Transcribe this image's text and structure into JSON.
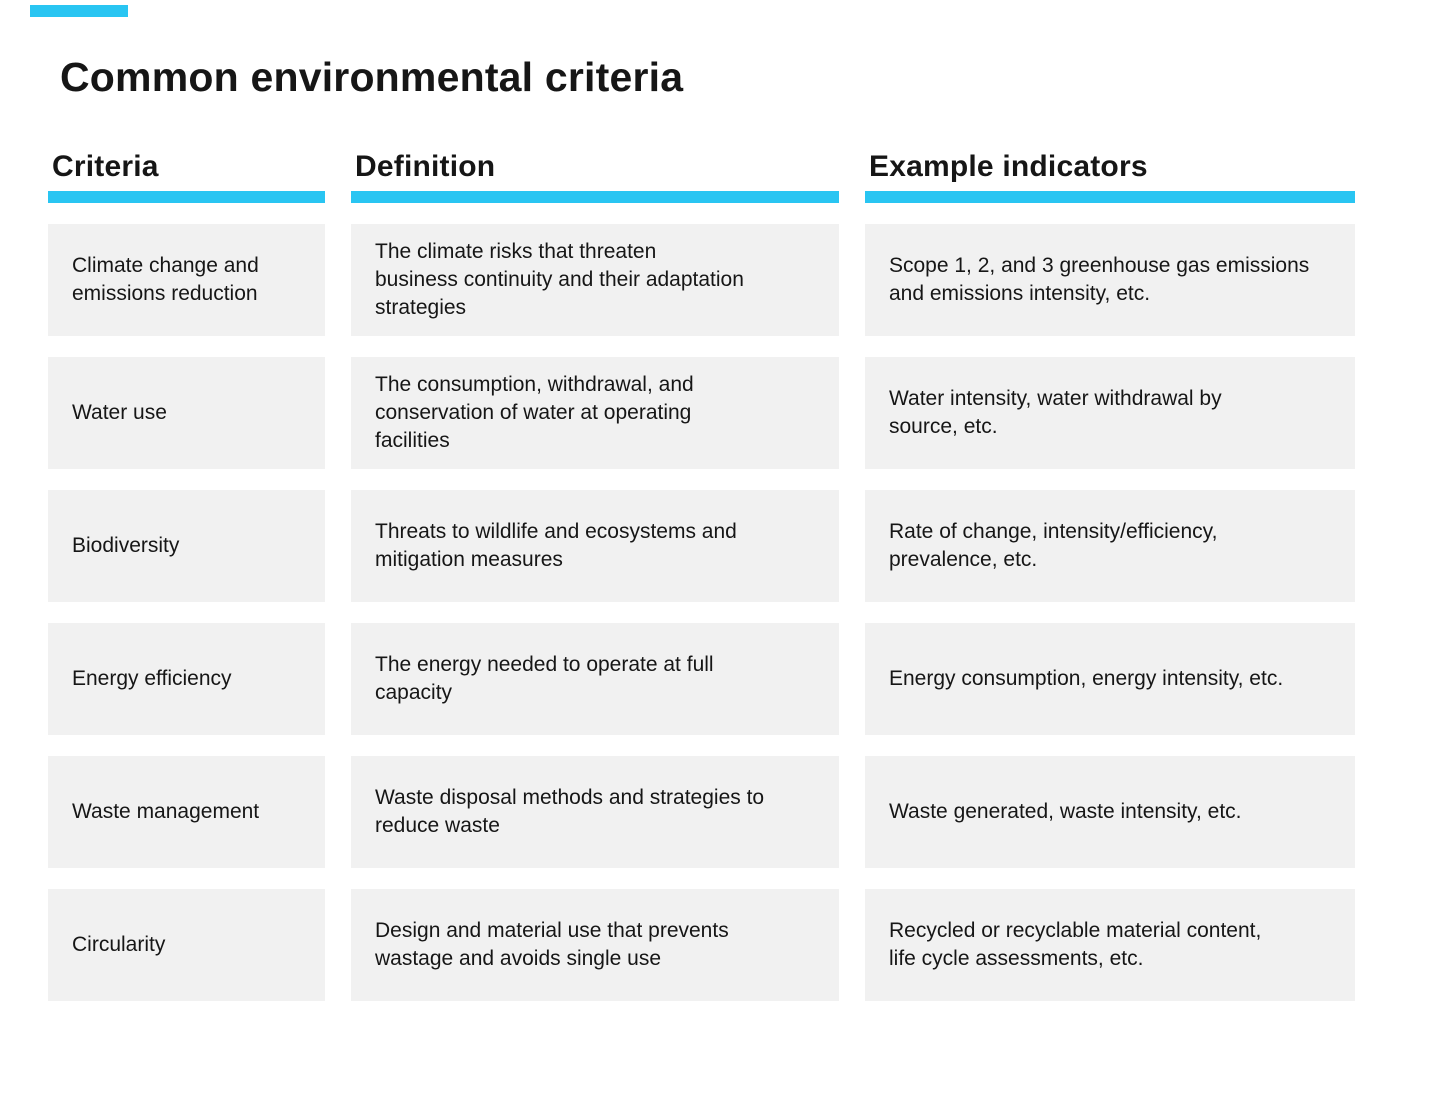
{
  "page": {
    "title": "Common environmental criteria"
  },
  "colors": {
    "accent_cyan": "#29c5f2",
    "cell_background": "#f1f1f1",
    "text": "#161616",
    "page_background": "#ffffff"
  },
  "table": {
    "columns": [
      {
        "id": "criteria",
        "label": "Criteria"
      },
      {
        "id": "definition",
        "label": "Definition"
      },
      {
        "id": "indicators",
        "label": "Example indicators"
      }
    ],
    "rows": [
      {
        "criteria": "Climate change and\nemissions reduction",
        "definition": "The climate risks that threaten\nbusiness continuity and their adaptation\nstrategies",
        "indicators": "Scope 1, 2, and 3 greenhouse gas emissions\nand emissions intensity, etc."
      },
      {
        "criteria": "Water use",
        "definition": "The consumption, withdrawal, and\nconservation of water at operating\nfacilities",
        "indicators": "Water intensity, water withdrawal by\nsource, etc."
      },
      {
        "criteria": "Biodiversity",
        "definition": "Threats to wildlife and ecosystems and\nmitigation measures",
        "indicators": "Rate of change, intensity/efficiency,\nprevalence, etc."
      },
      {
        "criteria": "Energy efficiency",
        "definition": "The energy needed to operate at full\ncapacity",
        "indicators": "Energy consumption, energy intensity, etc."
      },
      {
        "criteria": "Waste management",
        "definition": "Waste disposal methods and strategies to\nreduce waste",
        "indicators": "Waste generated, waste intensity, etc."
      },
      {
        "criteria": "Circularity",
        "definition": "Design and material use that prevents\nwastage and avoids single use",
        "indicators": "Recycled or recyclable material content,\nlife cycle assessments, etc."
      }
    ]
  }
}
